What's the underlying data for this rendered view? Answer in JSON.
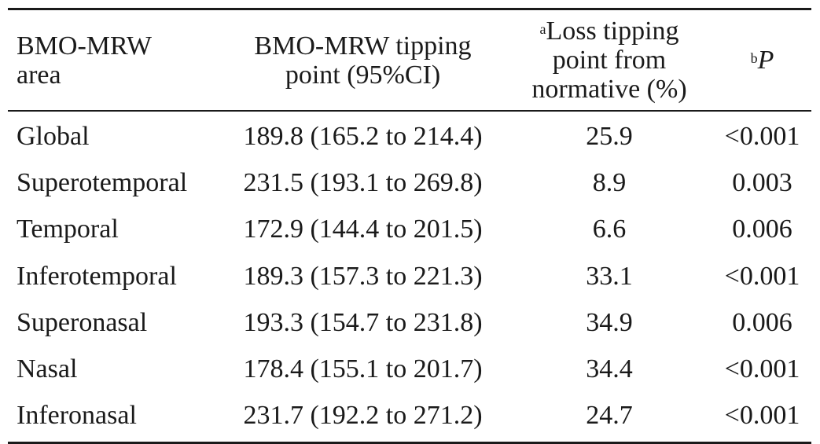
{
  "table": {
    "headers": {
      "area": "BMO-MRW\narea",
      "tipping": "BMO-MRW tipping\npoint (95%CI)",
      "loss_sup": "a",
      "loss": "Loss tipping\npoint from\nnormative (%)",
      "p_sup": "b",
      "p": "P"
    },
    "rows": [
      {
        "area": "Global",
        "tipping": "189.8 (165.2 to 214.4)",
        "loss": "25.9",
        "p": "<0.001"
      },
      {
        "area": "Superotemporal",
        "tipping": "231.5 (193.1 to 269.8)",
        "loss": "8.9",
        "p": "0.003"
      },
      {
        "area": "Temporal",
        "tipping": "172.9 (144.4 to 201.5)",
        "loss": "6.6",
        "p": "0.006"
      },
      {
        "area": "Inferotemporal",
        "tipping": "189.3 (157.3 to 221.3)",
        "loss": "33.1",
        "p": "<0.001"
      },
      {
        "area": "Superonasal",
        "tipping": "193.3 (154.7 to 231.8)",
        "loss": "34.9",
        "p": "0.006"
      },
      {
        "area": "Nasal",
        "tipping": "178.4 (155.1 to 201.7)",
        "loss": "34.4",
        "p": "<0.001"
      },
      {
        "area": "Inferonasal",
        "tipping": "231.7 (192.2 to 271.2)",
        "loss": "24.7",
        "p": "<0.001"
      }
    ]
  }
}
